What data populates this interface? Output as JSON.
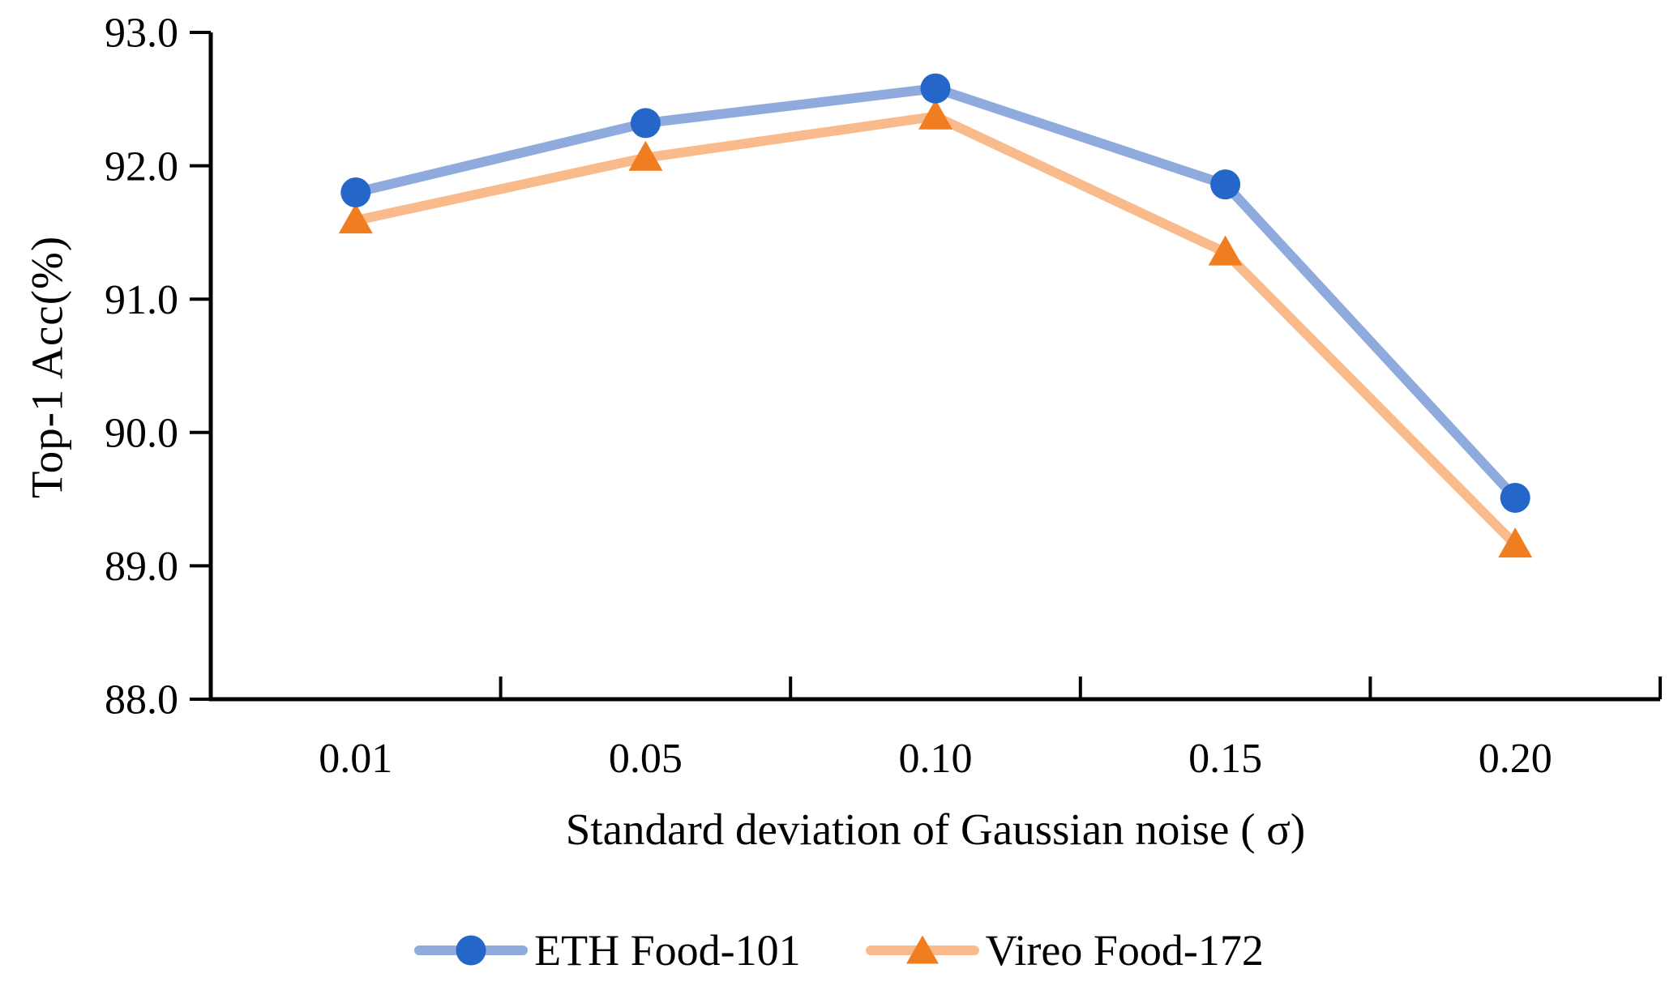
{
  "chart_data": {
    "type": "line",
    "title": "",
    "xlabel": "Standard deviation of Gaussian noise ( σ)",
    "ylabel": "Top-1 Acc(%)",
    "categories": [
      "0.01",
      "0.05",
      "0.10",
      "0.15",
      "0.20"
    ],
    "series": [
      {
        "name": "ETH Food-101",
        "marker": "circle",
        "line_color": "#8faadc",
        "marker_color": "#2467c9",
        "values": [
          91.8,
          92.32,
          92.58,
          91.86,
          89.51
        ]
      },
      {
        "name": "Vireo Food-172",
        "marker": "triangle",
        "line_color": "#f9bb8b",
        "marker_color": "#f07d1f",
        "values": [
          91.59,
          92.06,
          92.37,
          91.35,
          89.16
        ]
      }
    ],
    "ylim": [
      88.0,
      93.0
    ],
    "ytick_labels": [
      "88.0",
      "89.0",
      "90.0",
      "91.0",
      "92.0",
      "93.0"
    ],
    "xtick_style": "inside-boundary",
    "grid": false,
    "legend_position": "bottom",
    "axis_color": "#000000"
  }
}
